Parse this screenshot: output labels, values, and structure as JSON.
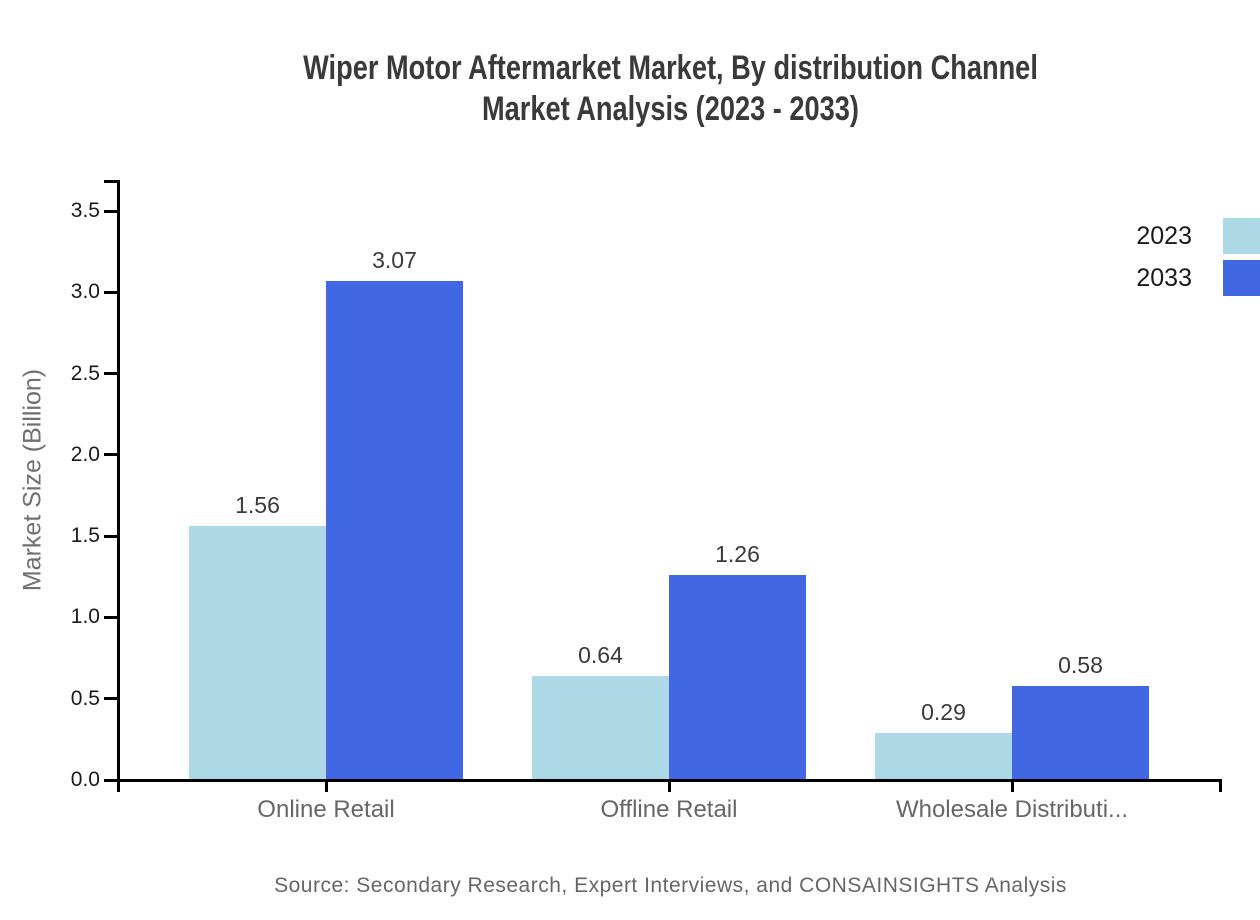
{
  "title": {
    "line1": "Wiper Motor Aftermarket Market, By distribution Channel",
    "line2": "Market Analysis (2023 - 2033)"
  },
  "source_note": "Source: Secondary Research, Expert Interviews, and CONSAINSIGHTS Analysis",
  "chart_data": {
    "type": "bar",
    "title": "Wiper Motor Aftermarket Market, By distribution Channel Market Analysis (2023 - 2033)",
    "categories": [
      "Online Retail",
      "Offline Retail",
      "Wholesale Distributi..."
    ],
    "series": [
      {
        "name": "2023",
        "color": "#ADD8E6",
        "values": [
          1.56,
          0.64,
          0.29
        ]
      },
      {
        "name": "2033",
        "color": "#4267E2",
        "values": [
          3.07,
          1.26,
          0.58
        ]
      }
    ],
    "xlabel": "",
    "ylabel": "Market Size (Billion)",
    "ylim": [
      0,
      3.5
    ],
    "ytick_step": 0.5,
    "ytick_labels": [
      "0.0",
      "0.5",
      "1.0",
      "1.5",
      "2.0",
      "2.5",
      "3.0",
      "3.5"
    ],
    "grid": false,
    "legend_position": "top-right",
    "value_labels": true,
    "axis_color": "#000000"
  }
}
